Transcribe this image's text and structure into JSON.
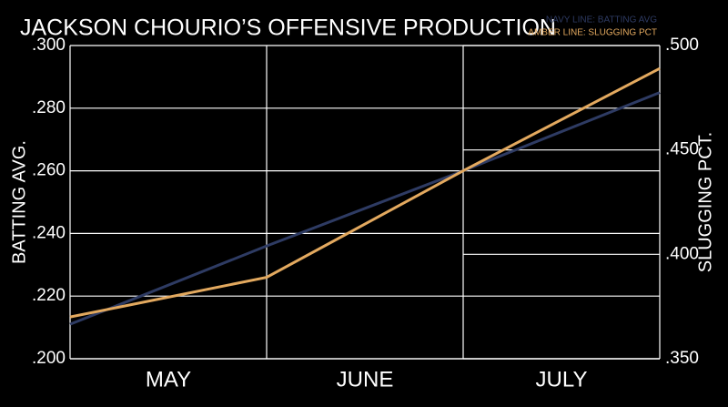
{
  "chart_data": {
    "type": "line",
    "title": "JACKSON CHOURIO’S OFFENSIVE PRODUCTION",
    "y_label": "BATTING AVG.",
    "y2_label": "SLUGGING PCT.",
    "categories": [
      "MAY",
      "JUNE",
      "JULY",
      null
    ],
    "series": [
      {
        "name": "NAVY LINE: BATTING AVG",
        "color": "#2e3b63",
        "values": [
          0.211,
          0.236,
          0.26,
          0.285
        ]
      },
      {
        "name": "AMBER LINE: SLUGGING PCT",
        "color": "#e3a95f",
        "axis": "y2",
        "values": [
          0.37,
          0.389,
          0.44,
          0.489
        ]
      }
    ],
    "ylim": [
      0.2,
      0.3
    ],
    "yticks": [
      {
        "value": 0.2,
        "label": ".200"
      },
      {
        "value": 0.22,
        "label": ".220"
      },
      {
        "value": 0.24,
        "label": ".240"
      },
      {
        "value": 0.26,
        "label": ".260"
      },
      {
        "value": 0.28,
        "label": ".280"
      },
      {
        "value": 0.3,
        "label": ".300"
      }
    ],
    "y2lim": [
      0.35,
      0.5
    ],
    "y2ticks": [
      {
        "value": 0.35,
        "label": ".350"
      },
      {
        "value": 0.4,
        "label": ".400"
      },
      {
        "value": 0.45,
        "label": ".450"
      },
      {
        "value": 0.5,
        "label": ".500"
      }
    ],
    "grid": true
  }
}
